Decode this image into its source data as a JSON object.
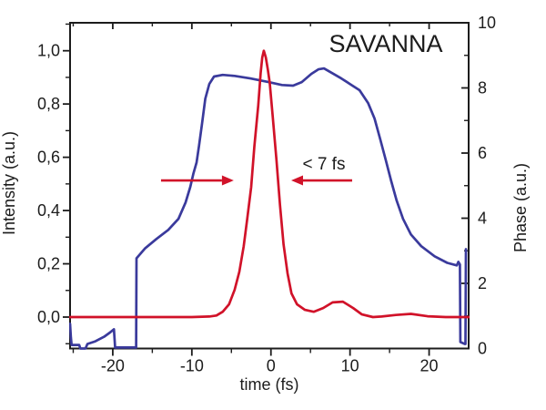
{
  "figure": {
    "title": "SAVANNA",
    "background": "#ffffff",
    "frame_color": "#1c1c1c",
    "text_color": "#1c1c1c"
  },
  "chart_data": {
    "type": "line",
    "title": "SAVANNA",
    "xlabel": "time (fs)",
    "ylabel_left": "Intensity (a.u.)",
    "ylabel_right": "Phase (a.u.)",
    "xlim": [
      -25.4,
      25
    ],
    "ylim_left": [
      -0.118,
      1.105
    ],
    "ylim_right": [
      0,
      10
    ],
    "grid": false,
    "legend": "none",
    "x_ticks": {
      "major": [
        -20,
        -10,
        0,
        10,
        20
      ],
      "labels": [
        "-20",
        "-10",
        "0",
        "10",
        "20"
      ],
      "minor": [
        -25,
        -15,
        -5,
        5,
        15
      ]
    },
    "y_left_ticks": {
      "major": [
        0.0,
        0.2,
        0.4,
        0.6,
        0.8,
        1.0
      ],
      "labels": [
        "0,0",
        "0,2",
        "0,4",
        "0,6",
        "0,8",
        "1,0"
      ],
      "minor": [
        -0.1,
        0.1,
        0.3,
        0.5,
        0.7,
        0.9,
        1.1
      ]
    },
    "y_right_ticks": {
      "major": [
        0,
        2,
        4,
        6,
        8,
        10
      ],
      "labels": [
        "0",
        "2",
        "4",
        "6",
        "8",
        "10"
      ],
      "minor": [
        1,
        3,
        5,
        7,
        9
      ]
    },
    "series": [
      {
        "name": "Phase",
        "axis": "right",
        "color": "#3a3a9c",
        "points": [
          [
            -25.4,
            0.76
          ],
          [
            -25.3,
            0.34
          ],
          [
            -25.2,
            0.11
          ],
          [
            -24.25,
            0.11
          ],
          [
            -24.1,
            0.0
          ],
          [
            -23.45,
            0.0
          ],
          [
            -23.2,
            0.14
          ],
          [
            -22.2,
            0.22
          ],
          [
            -21.1,
            0.36
          ],
          [
            -20.3,
            0.5
          ],
          [
            -19.85,
            0.59
          ],
          [
            -19.7,
            0.03
          ],
          [
            -17.05,
            0.03
          ],
          [
            -17.0,
            2.77
          ],
          [
            -15.9,
            3.08
          ],
          [
            -14.5,
            3.36
          ],
          [
            -13.0,
            3.64
          ],
          [
            -11.7,
            3.98
          ],
          [
            -10.8,
            4.48
          ],
          [
            -10.2,
            4.96
          ],
          [
            -9.8,
            5.38
          ],
          [
            -9.4,
            5.71
          ],
          [
            -9.1,
            6.22
          ],
          [
            -8.7,
            6.92
          ],
          [
            -8.3,
            7.67
          ],
          [
            -7.8,
            8.12
          ],
          [
            -7.2,
            8.35
          ],
          [
            -6.1,
            8.4
          ],
          [
            -4.6,
            8.37
          ],
          [
            -2.6,
            8.29
          ],
          [
            -0.3,
            8.18
          ],
          [
            1.4,
            8.09
          ],
          [
            2.8,
            8.07
          ],
          [
            3.9,
            8.18
          ],
          [
            5.1,
            8.43
          ],
          [
            6.0,
            8.57
          ],
          [
            6.7,
            8.6
          ],
          [
            7.7,
            8.46
          ],
          [
            8.9,
            8.29
          ],
          [
            10.0,
            8.12
          ],
          [
            11.2,
            7.93
          ],
          [
            12.3,
            7.53
          ],
          [
            13.1,
            7.06
          ],
          [
            13.8,
            6.44
          ],
          [
            14.5,
            5.8
          ],
          [
            15.2,
            5.15
          ],
          [
            15.9,
            4.54
          ],
          [
            16.7,
            3.98
          ],
          [
            17.7,
            3.5
          ],
          [
            19.0,
            3.14
          ],
          [
            20.7,
            2.83
          ],
          [
            22.3,
            2.63
          ],
          [
            23.5,
            2.55
          ],
          [
            23.7,
            2.66
          ],
          [
            23.9,
            2.58
          ],
          [
            23.95,
            0.2
          ],
          [
            24.5,
            0.14
          ],
          [
            24.6,
            0.14
          ],
          [
            24.65,
            3.05
          ]
        ]
      },
      {
        "name": "Intensity",
        "axis": "left",
        "color": "#d11229",
        "points": [
          [
            -25.4,
            0.0
          ],
          [
            -12.0,
            0.0
          ],
          [
            -10.0,
            0.0
          ],
          [
            -7.8,
            0.002
          ],
          [
            -6.9,
            0.006
          ],
          [
            -6.1,
            0.02
          ],
          [
            -5.3,
            0.048
          ],
          [
            -4.6,
            0.102
          ],
          [
            -4.0,
            0.17
          ],
          [
            -3.45,
            0.266
          ],
          [
            -3.0,
            0.369
          ],
          [
            -2.5,
            0.488
          ],
          [
            -2.1,
            0.64
          ],
          [
            -1.6,
            0.795
          ],
          [
            -1.3,
            0.915
          ],
          [
            -1.1,
            0.975
          ],
          [
            -0.9,
            1.0
          ],
          [
            -0.65,
            0.975
          ],
          [
            -0.4,
            0.93
          ],
          [
            -0.15,
            0.88
          ],
          [
            0.2,
            0.761
          ],
          [
            0.7,
            0.59
          ],
          [
            1.15,
            0.42
          ],
          [
            1.6,
            0.273
          ],
          [
            2.1,
            0.164
          ],
          [
            2.6,
            0.089
          ],
          [
            3.3,
            0.048
          ],
          [
            4.3,
            0.027
          ],
          [
            5.4,
            0.02
          ],
          [
            6.6,
            0.034
          ],
          [
            7.8,
            0.055
          ],
          [
            9.1,
            0.058
          ],
          [
            10.4,
            0.034
          ],
          [
            11.5,
            0.01
          ],
          [
            12.9,
            0.0
          ],
          [
            14.0,
            0.002
          ],
          [
            15.8,
            0.008
          ],
          [
            17.7,
            0.012
          ],
          [
            19.8,
            0.003
          ],
          [
            22.1,
            0.0
          ],
          [
            25.0,
            0.0
          ]
        ]
      }
    ],
    "annotation": {
      "label": "< 7 fs",
      "label_t": 6.7,
      "label_v": 0.555,
      "arrow_v": 0.513,
      "arrow_right": {
        "from_t": -13.9,
        "to_t": -4.7
      },
      "arrow_left": {
        "from_t": 10.27,
        "to_t": 2.56
      },
      "color": "#d11229"
    }
  }
}
